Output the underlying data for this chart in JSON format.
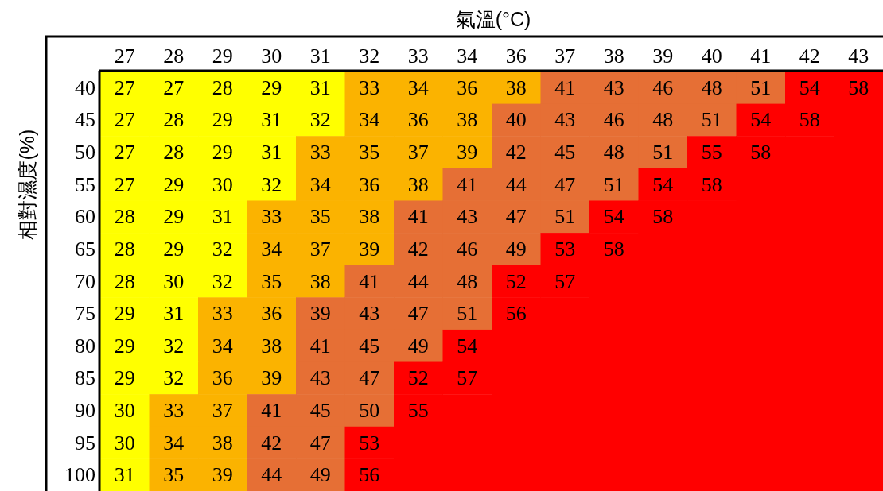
{
  "chart_data": {
    "type": "heatmap",
    "xlabel": "氣溫(°C)",
    "ylabel": "相對濕度(%)",
    "data_labels": true,
    "categories": [
      "27",
      "28",
      "29",
      "30",
      "31",
      "32",
      "33",
      "34",
      "36",
      "37",
      "38",
      "39",
      "40",
      "41",
      "42",
      "43"
    ],
    "y_categories": [
      "40",
      "45",
      "50",
      "55",
      "60",
      "65",
      "70",
      "75",
      "80",
      "85",
      "90",
      "95",
      "100"
    ],
    "cells": [
      [
        27,
        27,
        28,
        29,
        31,
        33,
        34,
        36,
        38,
        41,
        43,
        46,
        48,
        51,
        54,
        58
      ],
      [
        27,
        28,
        29,
        31,
        32,
        34,
        36,
        38,
        40,
        43,
        46,
        48,
        51,
        54,
        58,
        null
      ],
      [
        27,
        28,
        29,
        31,
        33,
        35,
        37,
        39,
        42,
        45,
        48,
        51,
        55,
        58,
        null,
        null
      ],
      [
        27,
        29,
        30,
        32,
        34,
        36,
        38,
        41,
        44,
        47,
        51,
        54,
        58,
        null,
        null,
        null
      ],
      [
        28,
        29,
        31,
        33,
        35,
        38,
        41,
        43,
        47,
        51,
        54,
        58,
        null,
        null,
        null,
        null
      ],
      [
        28,
        29,
        32,
        34,
        37,
        39,
        42,
        46,
        49,
        53,
        58,
        null,
        null,
        null,
        null,
        null
      ],
      [
        28,
        30,
        32,
        35,
        38,
        41,
        44,
        48,
        52,
        57,
        null,
        null,
        null,
        null,
        null,
        null
      ],
      [
        29,
        31,
        33,
        36,
        39,
        43,
        47,
        51,
        56,
        null,
        null,
        null,
        null,
        null,
        null,
        null
      ],
      [
        29,
        32,
        34,
        38,
        41,
        45,
        49,
        54,
        null,
        null,
        null,
        null,
        null,
        null,
        null,
        null
      ],
      [
        29,
        32,
        36,
        39,
        43,
        47,
        52,
        57,
        null,
        null,
        null,
        null,
        null,
        null,
        null,
        null
      ],
      [
        30,
        33,
        37,
        41,
        45,
        50,
        55,
        null,
        null,
        null,
        null,
        null,
        null,
        null,
        null,
        null
      ],
      [
        30,
        34,
        38,
        42,
        47,
        53,
        null,
        null,
        null,
        null,
        null,
        null,
        null,
        null,
        null,
        null
      ],
      [
        31,
        35,
        39,
        44,
        49,
        56,
        null,
        null,
        null,
        null,
        null,
        null,
        null,
        null,
        null,
        null
      ]
    ],
    "colors": [
      [
        "#ffff00",
        "#ffff00",
        "#ffff00",
        "#ffff00",
        "#ffff00",
        "#fbb300",
        "#fbb300",
        "#fbb300",
        "#fbb300",
        "#e66f35",
        "#e66f35",
        "#e66f35",
        "#e66f35",
        "#e66f35",
        "#ff0000",
        "#ff0000"
      ],
      [
        "#ffff00",
        "#ffff00",
        "#ffff00",
        "#ffff00",
        "#ffff00",
        "#fbb300",
        "#fbb300",
        "#fbb300",
        "#e66f35",
        "#e66f35",
        "#e66f35",
        "#e66f35",
        "#e66f35",
        "#ff0000",
        "#ff0000",
        "#ff0000"
      ],
      [
        "#ffff00",
        "#ffff00",
        "#ffff00",
        "#ffff00",
        "#fbb300",
        "#fbb300",
        "#fbb300",
        "#fbb300",
        "#e66f35",
        "#e66f35",
        "#e66f35",
        "#e66f35",
        "#ff0000",
        "#ff0000",
        "#ff0000",
        "#ff0000"
      ],
      [
        "#ffff00",
        "#ffff00",
        "#ffff00",
        "#ffff00",
        "#fbb300",
        "#fbb300",
        "#fbb300",
        "#e66f35",
        "#e66f35",
        "#e66f35",
        "#e66f35",
        "#ff0000",
        "#ff0000",
        "#ff0000",
        "#ff0000",
        "#ff0000"
      ],
      [
        "#ffff00",
        "#ffff00",
        "#ffff00",
        "#fbb300",
        "#fbb300",
        "#fbb300",
        "#e66f35",
        "#e66f35",
        "#e66f35",
        "#e66f35",
        "#ff0000",
        "#ff0000",
        "#ff0000",
        "#ff0000",
        "#ff0000",
        "#ff0000"
      ],
      [
        "#ffff00",
        "#ffff00",
        "#ffff00",
        "#fbb300",
        "#fbb300",
        "#fbb300",
        "#e66f35",
        "#e66f35",
        "#e66f35",
        "#ff0000",
        "#ff0000",
        "#ff0000",
        "#ff0000",
        "#ff0000",
        "#ff0000",
        "#ff0000"
      ],
      [
        "#ffff00",
        "#ffff00",
        "#ffff00",
        "#fbb300",
        "#fbb300",
        "#e66f35",
        "#e66f35",
        "#e66f35",
        "#ff0000",
        "#ff0000",
        "#ff0000",
        "#ff0000",
        "#ff0000",
        "#ff0000",
        "#ff0000",
        "#ff0000"
      ],
      [
        "#ffff00",
        "#ffff00",
        "#fbb300",
        "#fbb300",
        "#e66f35",
        "#e66f35",
        "#e66f35",
        "#e66f35",
        "#ff0000",
        "#ff0000",
        "#ff0000",
        "#ff0000",
        "#ff0000",
        "#ff0000",
        "#ff0000",
        "#ff0000"
      ],
      [
        "#ffff00",
        "#ffff00",
        "#fbb300",
        "#fbb300",
        "#e66f35",
        "#e66f35",
        "#e66f35",
        "#ff0000",
        "#ff0000",
        "#ff0000",
        "#ff0000",
        "#ff0000",
        "#ff0000",
        "#ff0000",
        "#ff0000",
        "#ff0000"
      ],
      [
        "#ffff00",
        "#ffff00",
        "#fbb300",
        "#fbb300",
        "#e66f35",
        "#e66f35",
        "#ff0000",
        "#ff0000",
        "#ff0000",
        "#ff0000",
        "#ff0000",
        "#ff0000",
        "#ff0000",
        "#ff0000",
        "#ff0000",
        "#ff0000"
      ],
      [
        "#ffff00",
        "#fbb300",
        "#fbb300",
        "#e66f35",
        "#e66f35",
        "#e66f35",
        "#ff0000",
        "#ff0000",
        "#ff0000",
        "#ff0000",
        "#ff0000",
        "#ff0000",
        "#ff0000",
        "#ff0000",
        "#ff0000",
        "#ff0000"
      ],
      [
        "#ffff00",
        "#fbb300",
        "#fbb300",
        "#e66f35",
        "#e66f35",
        "#ff0000",
        "#ff0000",
        "#ff0000",
        "#ff0000",
        "#ff0000",
        "#ff0000",
        "#ff0000",
        "#ff0000",
        "#ff0000",
        "#ff0000",
        "#ff0000"
      ],
      [
        "#ffff00",
        "#fbb300",
        "#fbb300",
        "#e66f35",
        "#e66f35",
        "#ff0000",
        "#ff0000",
        "#ff0000",
        "#ff0000",
        "#ff0000",
        "#ff0000",
        "#ff0000",
        "#ff0000",
        "#ff0000",
        "#ff0000",
        "#ff0000"
      ]
    ]
  }
}
